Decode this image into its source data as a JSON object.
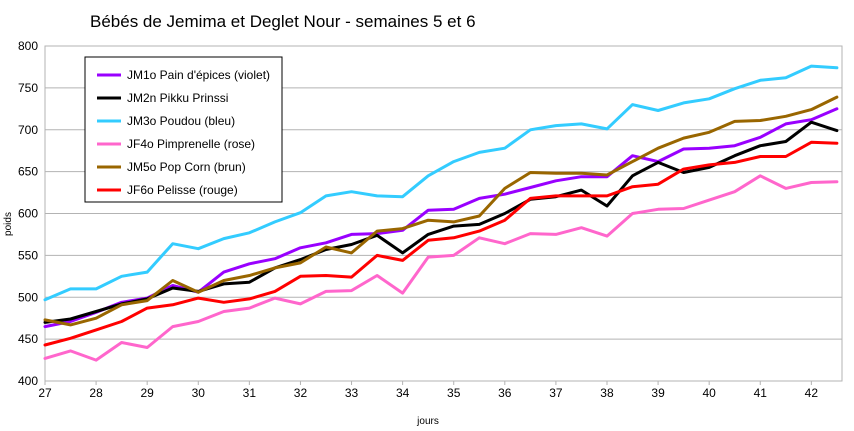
{
  "chart_data": {
    "type": "line",
    "title": "Bébés de Jemima et Deglet Nour - semaines 5 et 6",
    "xlabel": "jours",
    "ylabel": "poids",
    "xlim": [
      27,
      42.6
    ],
    "ylim": [
      400,
      800
    ],
    "x_ticks": [
      "27",
      "28",
      "29",
      "30",
      "31",
      "32",
      "33",
      "34",
      "35",
      "36",
      "37",
      "38",
      "39",
      "40",
      "41",
      "42"
    ],
    "y_ticks": [
      "400",
      "450",
      "500",
      "550",
      "600",
      "650",
      "700",
      "750",
      "800"
    ],
    "grid": "horizontal",
    "legend_position": "top-left",
    "x": [
      27,
      27.5,
      28,
      28.5,
      29,
      29.5,
      30,
      30.5,
      31,
      31.5,
      32,
      32.5,
      33,
      33.5,
      34,
      34.5,
      35,
      35.5,
      36,
      36.5,
      37,
      37.5,
      38,
      38.5,
      39,
      39.5,
      40,
      40.5,
      41,
      41.5,
      42,
      42.5
    ],
    "series": [
      {
        "name": "JM1o Pain d'épices (violet)",
        "color": "#9900ff",
        "values": [
          465,
          471,
          482,
          494,
          499,
          514,
          506,
          530,
          540,
          546,
          559,
          565,
          575,
          576,
          580,
          604,
          605,
          618,
          623,
          631,
          639,
          644,
          644,
          669,
          662,
          677,
          678,
          681,
          691,
          707,
          712,
          725
        ]
      },
      {
        "name": "JM2n Pikku Prinssi",
        "color": "#000000",
        "values": [
          470,
          474,
          483,
          492,
          498,
          511,
          507,
          516,
          518,
          535,
          545,
          557,
          563,
          574,
          553,
          575,
          585,
          587,
          600,
          617,
          620,
          628,
          609,
          645,
          661,
          649,
          655,
          669,
          681,
          686,
          709,
          699
        ]
      },
      {
        "name": "JM3o Poudou (bleu)",
        "color": "#33ccff",
        "values": [
          497,
          510,
          510,
          525,
          530,
          564,
          558,
          570,
          577,
          590,
          601,
          621,
          626,
          621,
          620,
          645,
          662,
          673,
          678,
          700,
          705,
          707,
          701,
          730,
          723,
          732,
          737,
          749,
          759,
          762,
          776,
          774
        ]
      },
      {
        "name": "JF4o Pimprenelle (rose)",
        "color": "#ff66cc",
        "values": [
          427,
          436,
          425,
          446,
          440,
          465,
          471,
          483,
          487,
          499,
          492,
          507,
          508,
          526,
          505,
          548,
          550,
          571,
          564,
          576,
          575,
          583,
          573,
          600,
          605,
          606,
          616,
          626,
          645,
          630,
          637,
          638
        ]
      },
      {
        "name": "JM5o Pop Corn (brun)",
        "color": "#996600",
        "values": [
          473,
          467,
          475,
          491,
          496,
          520,
          506,
          520,
          526,
          535,
          541,
          560,
          553,
          579,
          582,
          592,
          590,
          597,
          630,
          649,
          648,
          648,
          646,
          662,
          678,
          690,
          697,
          710,
          711,
          716,
          724,
          739
        ]
      },
      {
        "name": "JF6o Pelisse (rouge)",
        "color": "#ff0000",
        "values": [
          443,
          451,
          461,
          471,
          487,
          491,
          499,
          494,
          498,
          507,
          525,
          526,
          524,
          550,
          544,
          568,
          571,
          579,
          592,
          618,
          621,
          621,
          621,
          632,
          635,
          653,
          658,
          661,
          668,
          668,
          685,
          684
        ]
      }
    ]
  }
}
